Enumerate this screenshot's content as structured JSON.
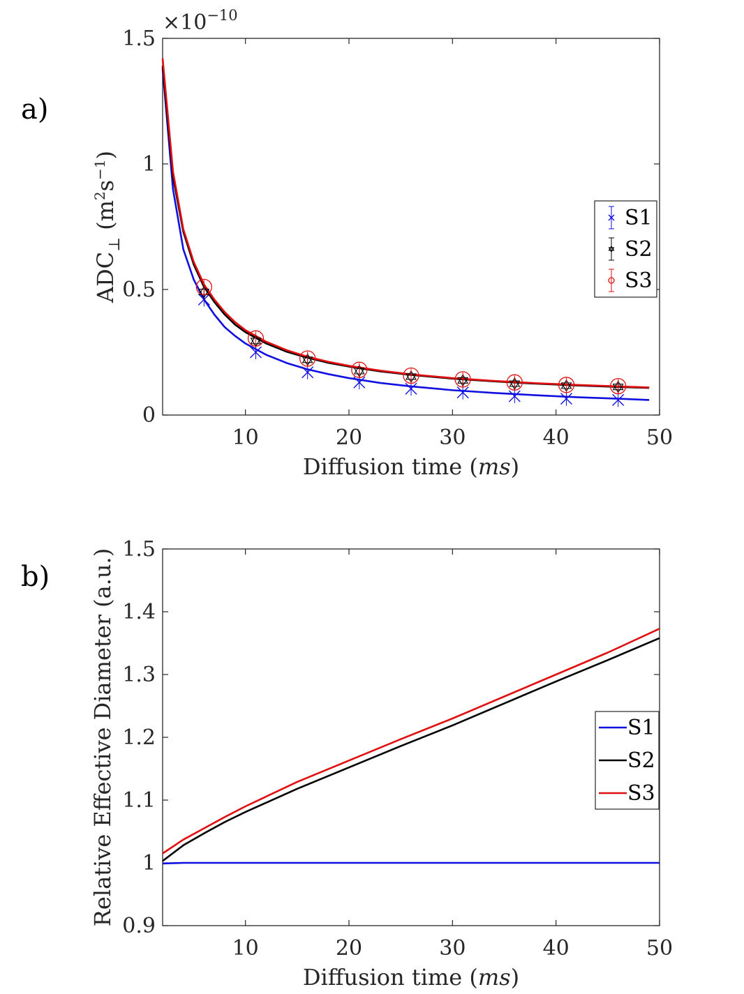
{
  "chart_data": [
    {
      "type": "line",
      "panel_label": "a)",
      "xlabel": "Diffusion time (",
      "xlabel_unit": "ms",
      "xlabel_close": ")",
      "ylabel_main": "ADC",
      "ylabel_sub": "⊥",
      "ylabel_unit_open": " (m",
      "ylabel_unit_sup1": "2",
      "ylabel_unit_mid": "s",
      "ylabel_unit_sup2": "−1",
      "ylabel_unit_close": ")",
      "exponent_base": "×10",
      "exponent_power": "−10",
      "xlim": [
        2,
        50
      ],
      "ylim": [
        0,
        1.5
      ],
      "xticks": [
        "10",
        "20",
        "30",
        "40",
        "50"
      ],
      "xtick_values": [
        10,
        20,
        30,
        40,
        50
      ],
      "yticks": [
        "0",
        "0.5",
        "1",
        "1.5"
      ],
      "ytick_values": [
        0,
        0.5,
        1,
        1.5
      ],
      "legend_position": "right",
      "fit_x": [
        2,
        3,
        4,
        5,
        6,
        7,
        8,
        9,
        10,
        12,
        14,
        16,
        18,
        20,
        23,
        26,
        30,
        34,
        38,
        42,
        46,
        49
      ],
      "series": [
        {
          "name": "S1",
          "color": "#1010e0",
          "marker": "x",
          "fit": [
            1.38,
            0.9,
            0.66,
            0.54,
            0.46,
            0.4,
            0.35,
            0.315,
            0.285,
            0.24,
            0.207,
            0.182,
            0.163,
            0.147,
            0.128,
            0.114,
            0.099,
            0.088,
            0.079,
            0.071,
            0.065,
            0.06
          ],
          "points_x": [
            6,
            11,
            16,
            21,
            26,
            31,
            36,
            41,
            46
          ],
          "points_y": [
            0.46,
            0.25,
            0.17,
            0.13,
            0.105,
            0.09,
            0.075,
            0.065,
            0.06
          ]
        },
        {
          "name": "S2",
          "color": "#000000",
          "marker": "star",
          "fit": [
            1.39,
            0.95,
            0.73,
            0.6,
            0.51,
            0.45,
            0.4,
            0.36,
            0.33,
            0.285,
            0.252,
            0.228,
            0.208,
            0.193,
            0.174,
            0.16,
            0.145,
            0.134,
            0.125,
            0.118,
            0.112,
            0.108
          ],
          "points_x": [
            6,
            11,
            16,
            21,
            26,
            31,
            36,
            41,
            46
          ],
          "points_y": [
            0.49,
            0.295,
            0.22,
            0.175,
            0.153,
            0.138,
            0.125,
            0.117,
            0.112
          ]
        },
        {
          "name": "S3",
          "color": "#e01010",
          "marker": "circle",
          "fit": [
            1.42,
            0.97,
            0.74,
            0.61,
            0.52,
            0.46,
            0.41,
            0.37,
            0.338,
            0.292,
            0.258,
            0.232,
            0.212,
            0.196,
            0.177,
            0.162,
            0.147,
            0.136,
            0.127,
            0.12,
            0.114,
            0.11
          ],
          "points_x": [
            6,
            11,
            16,
            21,
            26,
            31,
            36,
            41,
            46
          ],
          "points_y": [
            0.51,
            0.305,
            0.225,
            0.18,
            0.157,
            0.142,
            0.13,
            0.12,
            0.115
          ]
        }
      ]
    },
    {
      "type": "line",
      "panel_label": "b)",
      "xlabel": "Diffusion time (",
      "xlabel_unit": "ms",
      "xlabel_close": ")",
      "ylabel": "Relative Effective Diameter (a.u.)",
      "xlim": [
        2,
        50
      ],
      "ylim": [
        0.9,
        1.5
      ],
      "xticks": [
        "10",
        "20",
        "30",
        "40",
        "50"
      ],
      "xtick_values": [
        10,
        20,
        30,
        40,
        50
      ],
      "yticks": [
        "0.9",
        "1",
        "1.1",
        "1.2",
        "1.3",
        "1.4",
        "1.5"
      ],
      "ytick_values": [
        0.9,
        1.0,
        1.1,
        1.2,
        1.3,
        1.4,
        1.5
      ],
      "legend_position": "right",
      "x": [
        2,
        4,
        6,
        8,
        10,
        15,
        20,
        25,
        30,
        35,
        40,
        45,
        50
      ],
      "series": [
        {
          "name": "S1",
          "color": "#1010e0",
          "values": [
            0.999,
            1.0,
            1.0,
            1.0,
            1.0,
            1.0,
            1.0,
            1.0,
            1.0,
            1.0,
            1.0,
            1.0,
            1.0
          ]
        },
        {
          "name": "S2",
          "color": "#000000",
          "values": [
            1.003,
            1.028,
            1.047,
            1.065,
            1.081,
            1.118,
            1.152,
            1.186,
            1.219,
            1.254,
            1.289,
            1.323,
            1.358
          ]
        },
        {
          "name": "S3",
          "color": "#e01010",
          "values": [
            1.015,
            1.037,
            1.055,
            1.073,
            1.09,
            1.129,
            1.163,
            1.197,
            1.23,
            1.265,
            1.3,
            1.335,
            1.373
          ]
        }
      ]
    }
  ]
}
